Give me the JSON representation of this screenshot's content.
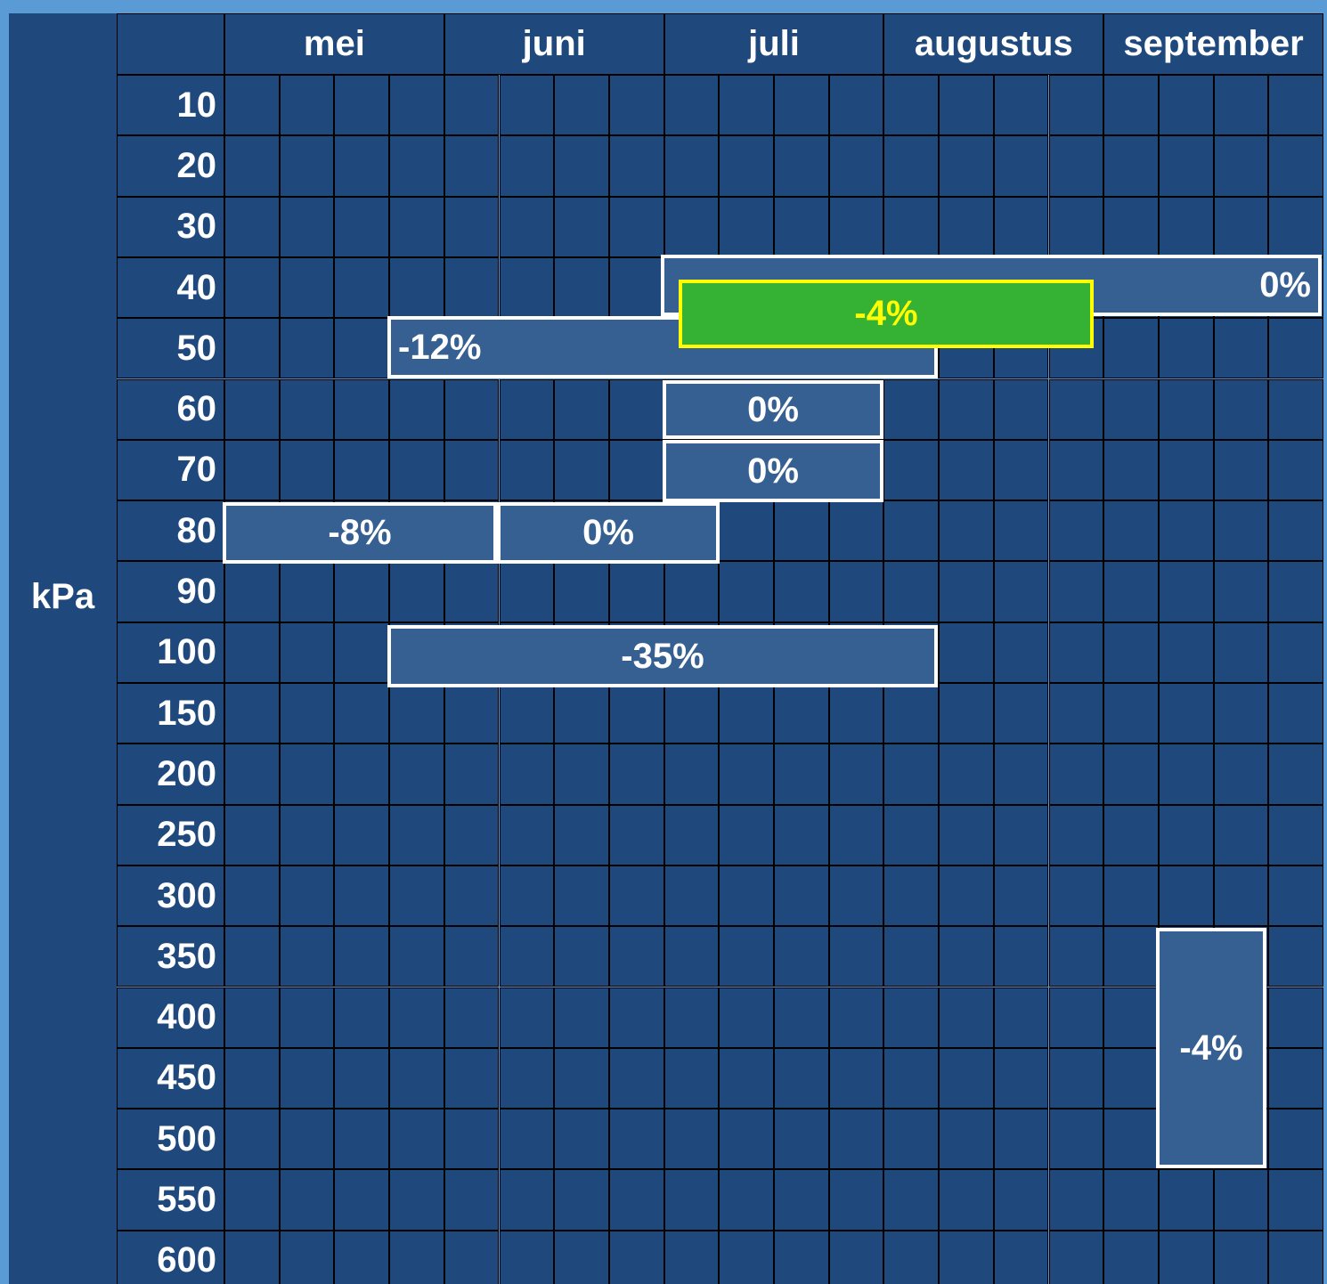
{
  "axis_label": "kPa",
  "header": {
    "months": [
      "mei",
      "juni",
      "juli",
      "augustus",
      "september"
    ]
  },
  "rows": [
    "10",
    "20",
    "30",
    "40",
    "50",
    "60",
    "70",
    "80",
    "90",
    "100",
    "150",
    "200",
    "250",
    "300",
    "350",
    "400",
    "450",
    "500",
    "550",
    "600"
  ],
  "bars": [
    {
      "label": "0%"
    },
    {
      "label": "-12%"
    },
    {
      "label": "-4%"
    },
    {
      "label": "0%"
    },
    {
      "label": "0%"
    },
    {
      "label": "-8%"
    },
    {
      "label": "0%"
    },
    {
      "label": "-35%"
    },
    {
      "label": "-4%"
    }
  ]
}
